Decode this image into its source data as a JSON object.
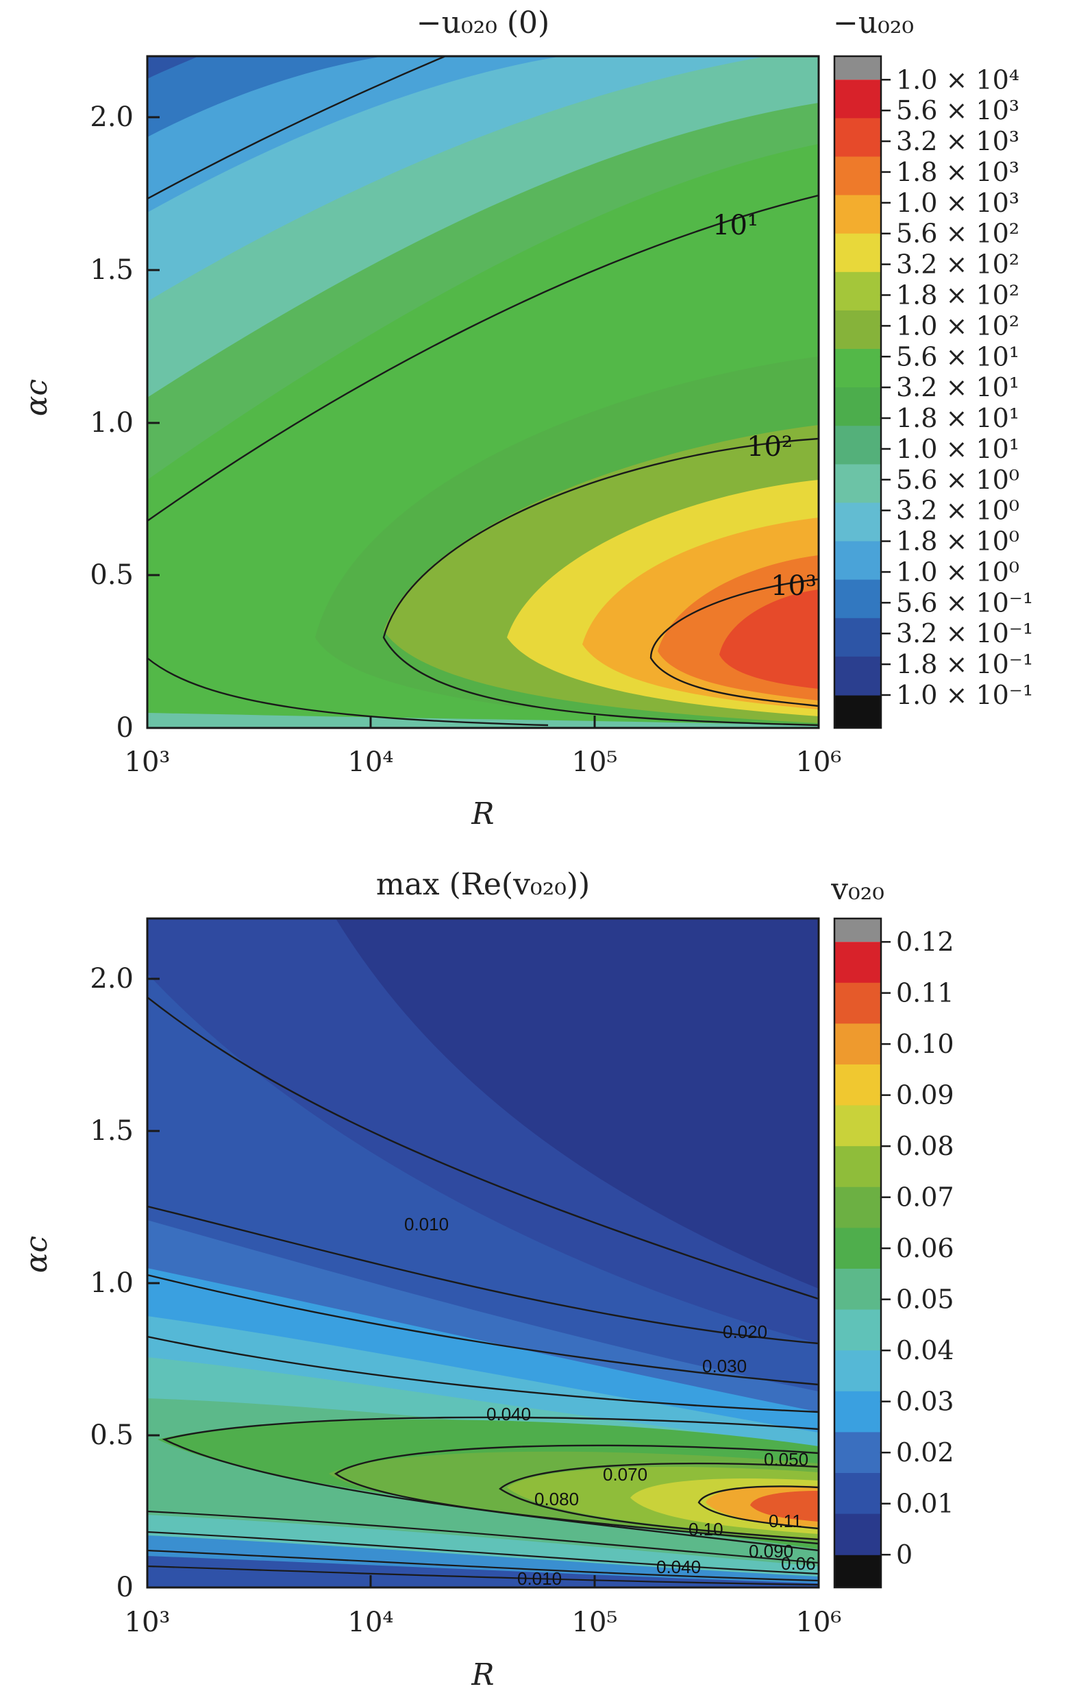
{
  "chart_data": [
    {
      "type": "heatmap",
      "title": "−u₀₂₀ (0)",
      "xlabel": "R",
      "ylabel": "αc",
      "x_scale": "log",
      "x_ticks": [
        "10³",
        "10⁴",
        "10⁵",
        "10⁶"
      ],
      "x_range": [
        1000,
        1000000
      ],
      "y_ticks": [
        "0",
        "0.5",
        "1.0",
        "1.5",
        "2.0"
      ],
      "y_range": [
        0,
        2.2
      ],
      "colorbar_title": "−u₀₂₀",
      "colorbar_scale": "log",
      "colorbar_labels": [
        "1.0 × 10⁴",
        "5.6 × 10³",
        "3.2 × 10³",
        "1.8 × 10³",
        "1.0 × 10³",
        "5.6 × 10²",
        "3.2 × 10²",
        "1.8 × 10²",
        "1.0 × 10²",
        "5.6 × 10¹",
        "3.2 × 10¹",
        "1.8 × 10¹",
        "1.0 × 10¹",
        "5.6 × 10⁰",
        "3.2 × 10⁰",
        "1.8 × 10⁰",
        "1.0 × 10⁰",
        "5.6 × 10⁻¹",
        "3.2 × 10⁻¹",
        "1.8 × 10⁻¹",
        "1.0 × 10⁻¹"
      ],
      "contour_labels": [
        "10¹",
        "10²",
        "10³"
      ],
      "peak": {
        "R": 1000000,
        "alpha_c": 0.18
      }
    },
    {
      "type": "heatmap",
      "title": "max (Re(v₀₂₀))",
      "xlabel": "R",
      "ylabel": "αc",
      "x_scale": "log",
      "x_ticks": [
        "10³",
        "10⁴",
        "10⁵",
        "10⁶"
      ],
      "x_range": [
        1000,
        1000000
      ],
      "y_ticks": [
        "0",
        "0.5",
        "1.0",
        "1.5",
        "2.0"
      ],
      "y_range": [
        0,
        2.2
      ],
      "colorbar_title": "v₀₂₀",
      "colorbar_labels": [
        "0.12",
        "0.11",
        "0.10",
        "0.09",
        "0.08",
        "0.07",
        "0.06",
        "0.05",
        "0.04",
        "0.03",
        "0.02",
        "0.01",
        "0"
      ],
      "colorbar_range": [
        0,
        0.12
      ],
      "contour_labels": [
        "0.010",
        "0.020",
        "0.030",
        "0.040",
        "0.050",
        "0.070",
        "0.080",
        "0.10",
        "0.11",
        "0.090",
        "0.040",
        "0.010",
        "0.06"
      ],
      "peak": {
        "R": 700000,
        "alpha_c": 0.22
      }
    }
  ],
  "colors": {
    "top_palette": [
      "#2b3f8f",
      "#2d55a6",
      "#3278c0",
      "#4aa3d8",
      "#62bcd2",
      "#6cc3a6",
      "#54b07a",
      "#4cad4c",
      "#53b848",
      "#86b33a",
      "#a4c63a",
      "#e8d83a",
      "#f3ad2e",
      "#ee7a2a",
      "#e64a2a",
      "#d8222a"
    ],
    "bottom_palette": [
      "#293a8c",
      "#2f52a8",
      "#3a6fbf",
      "#3aa0e0",
      "#55b8d6",
      "#60c2b8",
      "#5cb98a",
      "#4fae4c",
      "#6cb043",
      "#8fbd3a",
      "#c9d23a",
      "#f0c830",
      "#ee9a2e",
      "#e55a2a",
      "#d8222a"
    ]
  }
}
